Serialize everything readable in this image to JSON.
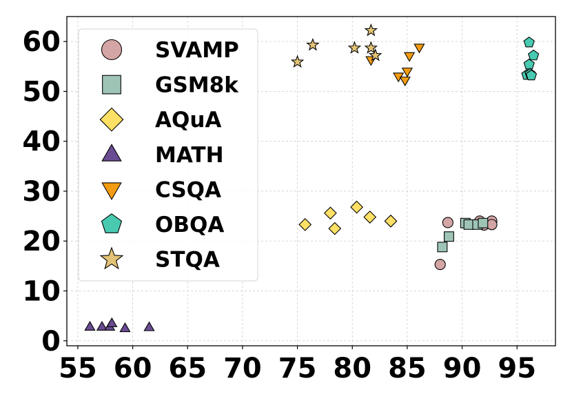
{
  "chart_data": {
    "type": "scatter",
    "title": "",
    "xlabel": "",
    "ylabel": "",
    "xlim": [
      54,
      98.5
    ],
    "ylim": [
      -1,
      65
    ],
    "x_ticks": [
      55,
      60,
      65,
      70,
      75,
      80,
      85,
      90,
      95
    ],
    "y_ticks": [
      0,
      10,
      20,
      30,
      40,
      50,
      60
    ],
    "grid": true,
    "legend_position": "upper-left",
    "series": [
      {
        "name": "SVAMP",
        "marker": "circle",
        "color": "#d4a5a5",
        "x": [
          88.0,
          88.7,
          91.6,
          92.0,
          92.7,
          92.7
        ],
        "y": [
          15.3,
          23.7,
          24.0,
          23.2,
          24.0,
          23.3
        ]
      },
      {
        "name": "GSM8k",
        "marker": "square",
        "color": "#9ec4b6",
        "x": [
          88.2,
          88.8,
          90.3,
          90.6,
          91.4,
          91.9
        ],
        "y": [
          18.8,
          20.9,
          23.6,
          23.3,
          23.3,
          23.6
        ]
      },
      {
        "name": "AQuA",
        "marker": "diamond",
        "color": "#ffe066",
        "x": [
          75.7,
          78.0,
          78.4,
          80.4,
          81.6,
          83.5
        ],
        "y": [
          23.3,
          25.6,
          22.5,
          26.8,
          24.8,
          24.0
        ]
      },
      {
        "name": "MATH",
        "marker": "triangle-up",
        "color": "#6a4c93",
        "x": [
          56.1,
          57.2,
          57.9,
          58.1,
          59.3,
          61.5
        ],
        "y": [
          2.8,
          2.8,
          2.8,
          3.5,
          2.5,
          2.7
        ]
      },
      {
        "name": "CSQA",
        "marker": "triangle-down",
        "color": "#f39c12",
        "x": [
          81.7,
          84.2,
          84.8,
          85.0,
          85.2,
          86.1
        ],
        "y": [
          56.3,
          53.0,
          52.2,
          54.0,
          57.1,
          58.8
        ]
      },
      {
        "name": "OBQA",
        "marker": "pentagon",
        "color": "#48c9b0",
        "x": [
          95.9,
          96.1,
          96.1,
          96.2,
          96.3,
          96.5
        ],
        "y": [
          53.3,
          59.8,
          55.4,
          53.5,
          53.2,
          57.2
        ]
      },
      {
        "name": "STQA",
        "marker": "star",
        "color": "#e2c275",
        "x": [
          75.0,
          76.4,
          80.2,
          81.7,
          81.7,
          82.1
        ],
        "y": [
          55.9,
          59.3,
          58.7,
          62.2,
          58.7,
          57.2
        ]
      }
    ]
  }
}
